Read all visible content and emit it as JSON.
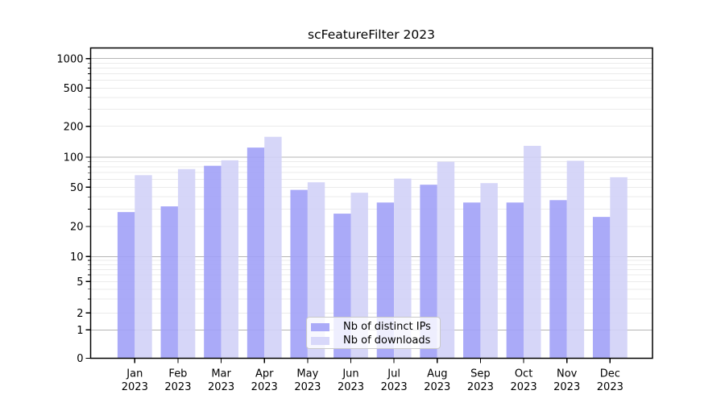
{
  "chart_data": {
    "type": "bar",
    "title": "scFeatureFilter 2023",
    "categories": [
      "Jan",
      "Feb",
      "Mar",
      "Apr",
      "May",
      "Jun",
      "Jul",
      "Aug",
      "Sep",
      "Oct",
      "Nov",
      "Dec"
    ],
    "category_year": "2023",
    "series": [
      {
        "name": "Nb of distinct IPs",
        "values": [
          28,
          32,
          82,
          124,
          47,
          27,
          35,
          53,
          35,
          35,
          37,
          25
        ],
        "color": "#a1a1f7",
        "legend_color": "#aaaaf8"
      },
      {
        "name": "Nb of downloads",
        "values": [
          66,
          76,
          93,
          158,
          56,
          44,
          61,
          90,
          55,
          129,
          92,
          63
        ],
        "color": "#d1d1f7",
        "legend_color": "#d8d8fa"
      }
    ],
    "yticks": [
      0,
      1,
      2,
      5,
      10,
      20,
      50,
      100,
      200,
      500,
      1000
    ],
    "yscale": "symlog",
    "xlabel": "",
    "ylabel": "",
    "grid": true,
    "legend_position": "lower center"
  },
  "colors": {
    "major_grid": "#b5b5b5",
    "minor_grid": "#ebebeb",
    "axis": "#000000",
    "background": "#ffffff"
  }
}
